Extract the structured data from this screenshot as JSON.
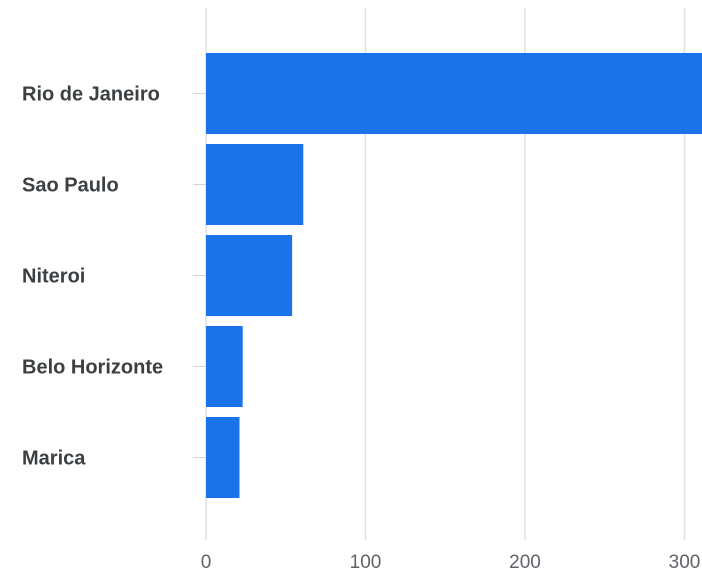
{
  "chart_data": {
    "type": "bar",
    "orientation": "horizontal",
    "title": "",
    "xlabel": "",
    "ylabel": "",
    "categories": [
      "Rio de Janeiro",
      "Sao Paulo",
      "Niteroi",
      "Belo Horizonte",
      "Marica"
    ],
    "values": [
      312,
      61,
      54,
      23,
      21
    ],
    "xlim": [
      0,
      310
    ],
    "xticks": [
      0,
      100,
      200,
      300
    ],
    "xtick_labels": [
      "0",
      "100",
      "200",
      "300"
    ],
    "grid": true,
    "legend": "none",
    "bar_color": "#1a73e8"
  }
}
